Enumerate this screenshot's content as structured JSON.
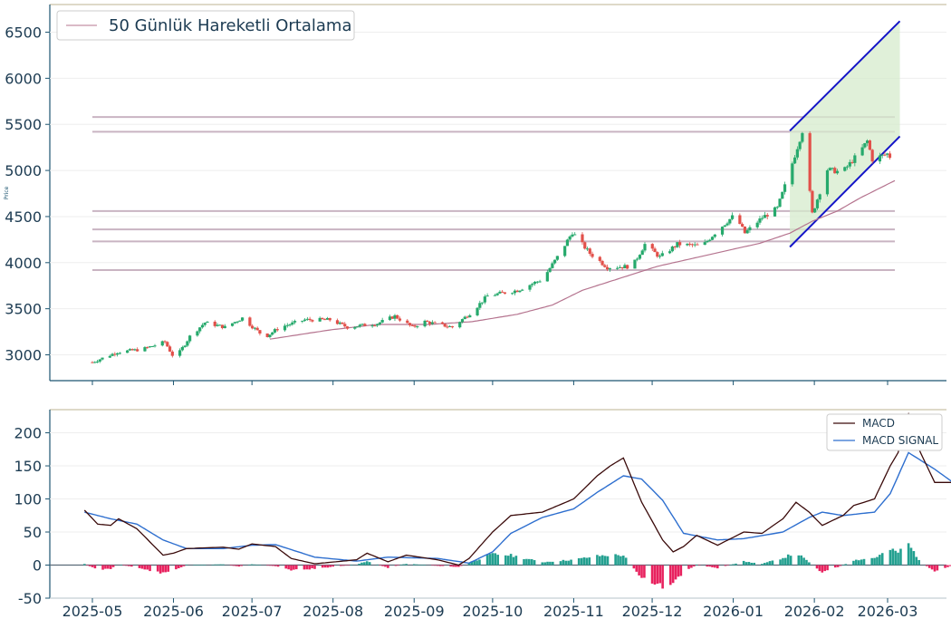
{
  "chart_data": [
    {
      "type": "candlestick",
      "ylabel": "Price",
      "ylim": [
        2720,
        6800
      ],
      "yticks": [
        "3000",
        "3500",
        "4000",
        "4500",
        "5000",
        "5500",
        "6000",
        "6500"
      ],
      "legend": {
        "placement": "top-left",
        "label": "50 Günlük Hareketli Ortalama"
      },
      "colors": {
        "up": "#26a96c",
        "down": "#e2504a",
        "ma": "#b5748f",
        "channel": "#1414c8",
        "channel_fill": "#d5ebcc",
        "levels": "#c9b4c2",
        "axis": "#1c5470"
      },
      "price_keypoints": [
        [
          "2025-04-28",
          2920
        ],
        [
          "2025-05-08",
          3030
        ],
        [
          "2025-05-18",
          3060
        ],
        [
          "2025-05-27",
          3140
        ],
        [
          "2025-05-31",
          2950
        ],
        [
          "2025-06-06",
          3200
        ],
        [
          "2025-06-12",
          3350
        ],
        [
          "2025-06-20",
          3300
        ],
        [
          "2025-06-27",
          3400
        ],
        [
          "2025-07-06",
          3190
        ],
        [
          "2025-07-12",
          3300
        ],
        [
          "2025-07-22",
          3380
        ],
        [
          "2025-08-01",
          3380
        ],
        [
          "2025-08-08",
          3300
        ],
        [
          "2025-08-20",
          3340
        ],
        [
          "2025-08-27",
          3420
        ],
        [
          "2025-09-03",
          3300
        ],
        [
          "2025-09-08",
          3360
        ],
        [
          "2025-09-19",
          3300
        ],
        [
          "2025-09-27",
          3470
        ],
        [
          "2025-10-03",
          3640
        ],
        [
          "2025-10-15",
          3700
        ],
        [
          "2025-10-25",
          3820
        ],
        [
          "2025-11-01",
          4100
        ],
        [
          "2025-11-06",
          4330
        ],
        [
          "2025-11-13",
          4100
        ],
        [
          "2025-11-20",
          3950
        ],
        [
          "2025-11-30",
          3960
        ],
        [
          "2025-12-05",
          4200
        ],
        [
          "2025-12-11",
          4060
        ],
        [
          "2025-12-18",
          4200
        ],
        [
          "2025-12-28",
          4180
        ],
        [
          "2026-01-03",
          4350
        ],
        [
          "2026-01-10",
          4520
        ],
        [
          "2026-01-14",
          4320
        ],
        [
          "2026-01-21",
          4490
        ],
        [
          "2026-01-27",
          4590
        ],
        [
          "2026-02-01",
          4990
        ],
        [
          "2026-02-06",
          5430
        ],
        [
          "2026-02-10",
          4530
        ],
        [
          "2026-02-16",
          5010
        ],
        [
          "2026-02-22",
          4980
        ],
        [
          "2026-03-01",
          5200
        ],
        [
          "2026-03-04",
          5320
        ],
        [
          "2026-03-06",
          5120
        ],
        [
          "2026-03-12",
          5180
        ],
        [
          "2026-03-15",
          5090
        ]
      ],
      "ma_keypoints": [
        [
          "2025-07-08",
          3170
        ],
        [
          "2025-08-01",
          3270
        ],
        [
          "2025-08-20",
          3330
        ],
        [
          "2025-09-10",
          3330
        ],
        [
          "2025-09-27",
          3360
        ],
        [
          "2025-10-15",
          3440
        ],
        [
          "2025-10-29",
          3540
        ],
        [
          "2025-11-10",
          3700
        ],
        [
          "2025-11-25",
          3830
        ],
        [
          "2025-12-10",
          3960
        ],
        [
          "2025-12-28",
          4070
        ],
        [
          "2026-01-10",
          4150
        ],
        [
          "2026-01-20",
          4210
        ],
        [
          "2026-02-01",
          4320
        ],
        [
          "2026-02-10",
          4450
        ],
        [
          "2026-02-20",
          4560
        ],
        [
          "2026-03-01",
          4700
        ],
        [
          "2026-03-15",
          4890
        ]
      ],
      "levels": [
        5580,
        5420,
        4560,
        4360,
        4230,
        3920
      ],
      "levels_x": [
        "2025-04-28",
        "2026-03-15"
      ],
      "channel": {
        "upper": [
          [
            "2026-02-01",
            5430
          ],
          [
            "2026-03-17",
            6620
          ]
        ],
        "lower": [
          [
            "2026-02-01",
            4170
          ],
          [
            "2026-03-17",
            5370
          ]
        ]
      }
    },
    {
      "type": "line",
      "ylim": [
        -50,
        235
      ],
      "yticks": [
        "-50",
        "0",
        "50",
        "100",
        "150",
        "200"
      ],
      "xticks": [
        "2025-05",
        "2025-06",
        "2025-07",
        "2025-08",
        "2025-09",
        "2025-10",
        "2025-11",
        "2025-12",
        "2026-01",
        "2026-02",
        "2026-03"
      ],
      "legend": {
        "placement": "top-right"
      },
      "colors": {
        "macd": "#3a0a0a",
        "signal": "#2e6fcf",
        "hist_pos": "#23a090",
        "hist_neg": "#e8225f"
      },
      "series": [
        {
          "name": "MACD",
          "keypoints": [
            [
              "2025-04-28",
              83
            ],
            [
              "2025-05-03",
              62
            ],
            [
              "2025-05-08",
              60
            ],
            [
              "2025-05-11",
              70
            ],
            [
              "2025-05-18",
              55
            ],
            [
              "2025-05-28",
              15
            ],
            [
              "2025-06-01",
              18
            ],
            [
              "2025-06-06",
              25
            ],
            [
              "2025-06-20",
              27
            ],
            [
              "2025-06-26",
              24
            ],
            [
              "2025-07-01",
              32
            ],
            [
              "2025-07-10",
              28
            ],
            [
              "2025-07-16",
              10
            ],
            [
              "2025-07-25",
              2
            ],
            [
              "2025-08-10",
              8
            ],
            [
              "2025-08-14",
              18
            ],
            [
              "2025-08-22",
              5
            ],
            [
              "2025-08-29",
              15
            ],
            [
              "2025-09-10",
              8
            ],
            [
              "2025-09-18",
              0
            ],
            [
              "2025-09-22",
              10
            ],
            [
              "2025-10-01",
              50
            ],
            [
              "2025-10-08",
              75
            ],
            [
              "2025-10-20",
              80
            ],
            [
              "2025-11-01",
              100
            ],
            [
              "2025-11-10",
              135
            ],
            [
              "2025-11-15",
              150
            ],
            [
              "2025-11-20",
              162
            ],
            [
              "2025-11-27",
              95
            ],
            [
              "2025-12-05",
              38
            ],
            [
              "2025-12-09",
              20
            ],
            [
              "2025-12-13",
              28
            ],
            [
              "2025-12-18",
              45
            ],
            [
              "2025-12-26",
              30
            ],
            [
              "2026-01-05",
              50
            ],
            [
              "2026-01-12",
              48
            ],
            [
              "2026-01-20",
              70
            ],
            [
              "2026-01-25",
              95
            ],
            [
              "2026-01-30",
              80
            ],
            [
              "2026-02-04",
              60
            ],
            [
              "2026-02-12",
              75
            ],
            [
              "2026-02-16",
              90
            ],
            [
              "2026-02-24",
              100
            ],
            [
              "2026-03-02",
              150
            ],
            [
              "2026-03-05",
              170
            ],
            [
              "2026-03-09",
              228
            ],
            [
              "2026-03-13",
              175
            ],
            [
              "2026-03-19",
              125
            ],
            [
              "2026-03-26",
              125
            ],
            [
              "2026-04-05",
              90
            ],
            [
              "2026-04-10",
              105
            ],
            [
              "2026-04-18",
              125
            ],
            [
              "2026-04-25",
              85
            ],
            [
              "2026-05-02",
              80
            ],
            [
              "2026-05-05",
              70
            ]
          ]
        },
        {
          "name": "MACD SIGNAL",
          "keypoints": [
            [
              "2025-04-28",
              80
            ],
            [
              "2025-05-08",
              70
            ],
            [
              "2025-05-18",
              62
            ],
            [
              "2025-05-28",
              38
            ],
            [
              "2025-06-06",
              25
            ],
            [
              "2025-06-20",
              25
            ],
            [
              "2025-07-01",
              30
            ],
            [
              "2025-07-10",
              31
            ],
            [
              "2025-07-25",
              12
            ],
            [
              "2025-08-10",
              6
            ],
            [
              "2025-08-22",
              12
            ],
            [
              "2025-09-10",
              10
            ],
            [
              "2025-09-22",
              3
            ],
            [
              "2025-10-01",
              20
            ],
            [
              "2025-10-08",
              48
            ],
            [
              "2025-10-20",
              72
            ],
            [
              "2025-11-01",
              85
            ],
            [
              "2025-11-10",
              110
            ],
            [
              "2025-11-20",
              135
            ],
            [
              "2025-11-27",
              130
            ],
            [
              "2025-12-05",
              98
            ],
            [
              "2025-12-13",
              48
            ],
            [
              "2025-12-26",
              38
            ],
            [
              "2026-01-05",
              40
            ],
            [
              "2026-01-20",
              50
            ],
            [
              "2026-01-30",
              72
            ],
            [
              "2026-02-04",
              80
            ],
            [
              "2026-02-12",
              75
            ],
            [
              "2026-02-24",
              80
            ],
            [
              "2026-03-02",
              108
            ],
            [
              "2026-03-09",
              170
            ],
            [
              "2026-03-19",
              145
            ],
            [
              "2026-03-26",
              125
            ],
            [
              "2026-04-05",
              108
            ],
            [
              "2026-04-10",
              108
            ],
            [
              "2026-04-18",
              112
            ],
            [
              "2026-04-25",
              104
            ],
            [
              "2026-05-05",
              88
            ]
          ]
        }
      ]
    }
  ]
}
